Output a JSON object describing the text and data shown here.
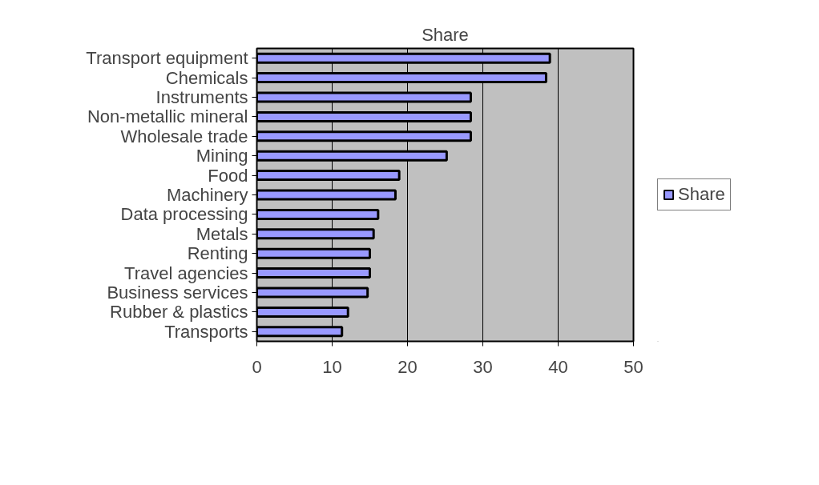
{
  "chart_data": {
    "type": "bar",
    "orientation": "horizontal",
    "title": "Share",
    "categories": [
      "Transport equipment",
      "Chemicals",
      "Instruments",
      "Non-metallic mineral",
      "Wholesale trade",
      "Mining",
      "Food",
      "Machinery",
      "Data processing",
      "Metals",
      "Renting",
      "Travel agencies",
      "Business services",
      "Rubber & plastics",
      "Transports"
    ],
    "series": [
      {
        "name": "Share",
        "color": "#9999ff",
        "values": [
          38.9,
          38.4,
          28.4,
          28.4,
          28.4,
          25.2,
          18.9,
          18.4,
          16.1,
          15.5,
          15.0,
          15.0,
          14.7,
          12.1,
          11.3
        ]
      }
    ],
    "xlim": [
      0,
      50
    ],
    "xticks": [
      0,
      10,
      20,
      30,
      40,
      50
    ],
    "grid": "x",
    "legend": "right"
  }
}
